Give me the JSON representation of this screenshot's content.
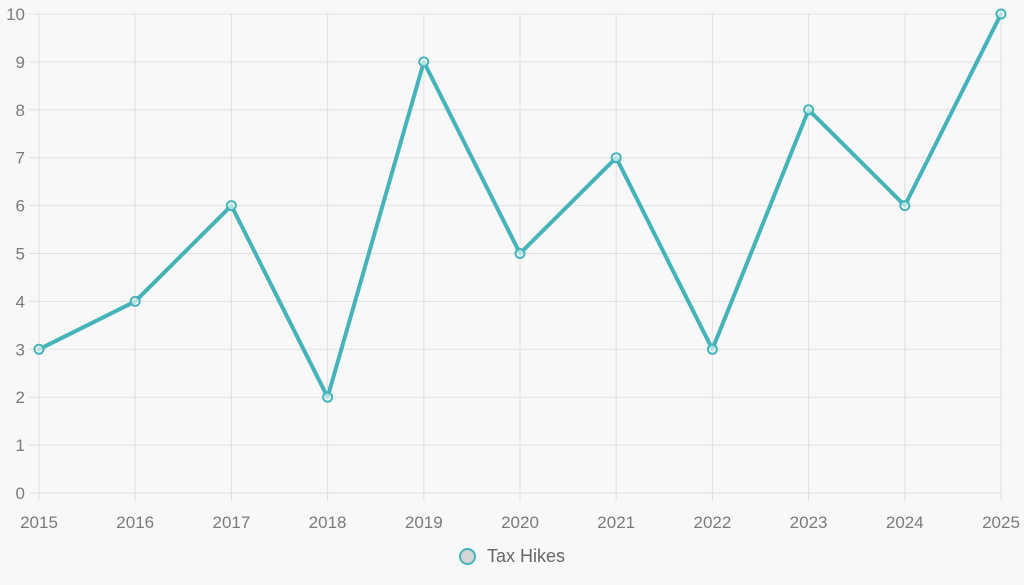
{
  "chart_data": {
    "type": "line",
    "categories": [
      "2015",
      "2016",
      "2017",
      "2018",
      "2019",
      "2020",
      "2021",
      "2022",
      "2023",
      "2024",
      "2025"
    ],
    "series": [
      {
        "name": "Tax Hikes",
        "values": [
          3,
          4,
          6,
          2,
          9,
          5,
          7,
          3,
          8,
          6,
          10
        ]
      }
    ],
    "title": "",
    "xlabel": "",
    "ylabel": "",
    "ylim": [
      0,
      10
    ],
    "y_ticks": [
      0,
      1,
      2,
      3,
      4,
      5,
      6,
      7,
      8,
      9,
      10
    ],
    "grid": true,
    "legend_position": "bottom",
    "colors": {
      "line": "#45b4ba",
      "marker_fill": "rgba(255,255,255,0.6)",
      "grid": "#e0e0e0",
      "axis_label": "#7b7b7b",
      "legend_text": "#666666",
      "background": "#f8f8f8"
    }
  }
}
